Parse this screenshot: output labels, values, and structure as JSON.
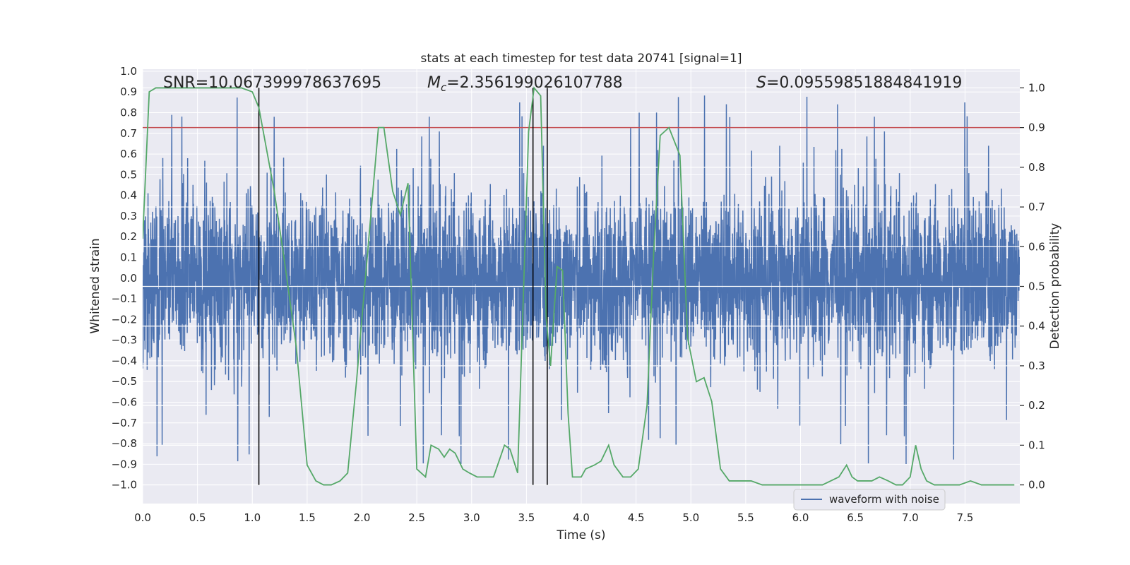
{
  "chart_data": {
    "type": "line",
    "title": "stats at each timestep for test data 20741 [signal=1]",
    "xlabel": "Time (s)",
    "ylabel_left": "Whitened strain",
    "ylabel_right": "Detection probability",
    "xlim": [
      0.0,
      8.0
    ],
    "ylim_left": [
      -1.09,
      1.01
    ],
    "ylim_right": [
      -0.047,
      1.047
    ],
    "xticks": [
      0.0,
      0.5,
      1.0,
      1.5,
      2.0,
      2.5,
      3.0,
      3.5,
      4.0,
      4.5,
      5.0,
      5.5,
      6.0,
      6.5,
      7.0,
      7.5
    ],
    "xtick_labels": [
      "0.0",
      "0.5",
      "1.0",
      "1.5",
      "2.0",
      "2.5",
      "3.0",
      "3.5",
      "4.0",
      "4.5",
      "5.0",
      "5.5",
      "6.0",
      "6.5",
      "7.0",
      "7.5"
    ],
    "yticks_left": [
      1.0,
      0.9,
      0.8,
      0.7,
      0.6,
      0.5,
      0.4,
      0.3,
      0.2,
      0.1,
      0.0,
      -0.1,
      -0.2,
      -0.3,
      -0.4,
      -0.5,
      -0.6,
      -0.7,
      -0.8,
      -0.9,
      -1.0
    ],
    "ytick_labels_left": [
      "1.0",
      "0.9",
      "0.8",
      "0.7",
      "0.6",
      "0.5",
      "0.4",
      "0.3",
      "0.2",
      "0.1",
      "0.0",
      "−0.1",
      "−0.2",
      "−0.3",
      "−0.4",
      "−0.5",
      "−0.6",
      "−0.7",
      "−0.8",
      "−0.9",
      "−1.0"
    ],
    "yticks_right": [
      1.0,
      0.9,
      0.8,
      0.7,
      0.6,
      0.5,
      0.4,
      0.3,
      0.2,
      0.1,
      0.0
    ],
    "ytick_labels_right": [
      "1.0",
      "0.9",
      "0.8",
      "0.7",
      "0.6",
      "0.5",
      "0.4",
      "0.3",
      "0.2",
      "0.1",
      "0.0"
    ],
    "threshold": {
      "axis": "right",
      "value": 0.9,
      "color": "#c44e52"
    },
    "vertical_markers": [
      1.06,
      3.56,
      3.69
    ],
    "annotations": {
      "snr": "SNR=10.067399978637695",
      "mc_symbol": "M",
      "mc_sub": "c",
      "mc_value": "=2.356199026107788",
      "s_symbol": "S",
      "s_value": "=0.09559851884841919"
    },
    "legend": {
      "label": "waveform with noise",
      "location": "lower-right"
    },
    "series": [
      {
        "name": "waveform with noise",
        "axis": "left",
        "color": "#4c72b0",
        "style": "dense noise, typical envelope ±0.35, spikes to ±0.9",
        "envelope": {
          "typical": 0.35,
          "spike_peak": [
            0.93,
            -1.0
          ]
        }
      },
      {
        "name": "detection probability",
        "axis": "right",
        "color": "#55a868",
        "x": [
          0.0,
          0.06,
          0.12,
          0.3,
          0.5,
          0.8,
          0.9,
          1.0,
          1.06,
          1.1,
          1.2,
          1.3,
          1.4,
          1.5,
          1.58,
          1.65,
          1.72,
          1.8,
          1.87,
          1.95,
          2.05,
          2.15,
          2.2,
          2.28,
          2.35,
          2.42,
          2.5,
          2.58,
          2.63,
          2.7,
          2.75,
          2.8,
          2.85,
          2.92,
          2.98,
          3.05,
          3.1,
          3.2,
          3.3,
          3.35,
          3.42,
          3.49,
          3.52,
          3.57,
          3.63,
          3.68,
          3.72,
          3.78,
          3.83,
          3.88,
          3.92,
          4.0,
          4.04,
          4.12,
          4.18,
          4.25,
          4.3,
          4.38,
          4.45,
          4.52,
          4.6,
          4.66,
          4.72,
          4.8,
          4.9,
          4.97,
          5.05,
          5.12,
          5.19,
          5.27,
          5.35,
          5.45,
          5.55,
          5.65,
          5.8,
          6.0,
          6.2,
          6.35,
          6.42,
          6.47,
          6.52,
          6.58,
          6.65,
          6.72,
          6.8,
          6.87,
          6.93,
          7.0,
          7.05,
          7.1,
          7.15,
          7.22,
          7.3,
          7.45,
          7.55,
          7.65,
          7.8,
          7.95
        ],
        "y": [
          0.62,
          0.99,
          1.0,
          1.0,
          1.0,
          1.0,
          1.0,
          0.99,
          0.95,
          0.89,
          0.74,
          0.55,
          0.35,
          0.05,
          0.01,
          0.0,
          0.0,
          0.01,
          0.03,
          0.26,
          0.58,
          0.9,
          0.9,
          0.74,
          0.68,
          0.76,
          0.04,
          0.02,
          0.1,
          0.09,
          0.07,
          0.09,
          0.08,
          0.04,
          0.03,
          0.02,
          0.02,
          0.02,
          0.1,
          0.09,
          0.03,
          0.63,
          0.89,
          1.0,
          0.98,
          0.42,
          0.3,
          0.55,
          0.54,
          0.18,
          0.02,
          0.02,
          0.04,
          0.05,
          0.06,
          0.1,
          0.05,
          0.02,
          0.02,
          0.04,
          0.2,
          0.58,
          0.88,
          0.9,
          0.83,
          0.37,
          0.26,
          0.27,
          0.21,
          0.04,
          0.01,
          0.01,
          0.01,
          0.0,
          0.0,
          0.0,
          0.0,
          0.02,
          0.05,
          0.02,
          0.01,
          0.01,
          0.01,
          0.02,
          0.01,
          0.0,
          0.0,
          0.02,
          0.1,
          0.04,
          0.01,
          0.0,
          0.0,
          0.0,
          0.01,
          0.0,
          0.0,
          0.0
        ]
      }
    ]
  }
}
